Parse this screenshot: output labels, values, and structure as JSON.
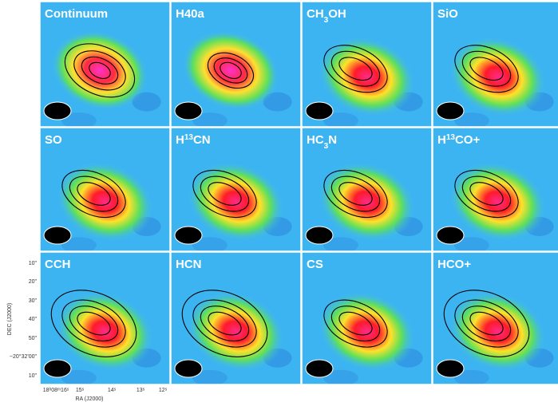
{
  "panels": [
    {
      "label": [
        {
          "text": "Continuum"
        }
      ]
    },
    {
      "label": [
        {
          "text": "H40a"
        }
      ]
    },
    {
      "label": [
        {
          "text": "CH"
        },
        {
          "sub": "3"
        },
        {
          "text": "OH"
        }
      ]
    },
    {
      "label": [
        {
          "text": "SiO"
        }
      ]
    },
    {
      "label": [
        {
          "text": "SO"
        }
      ]
    },
    {
      "label": [
        {
          "text": "H"
        },
        {
          "sup": "13"
        },
        {
          "text": "CN"
        }
      ]
    },
    {
      "label": [
        {
          "text": "HC"
        },
        {
          "sub": "3"
        },
        {
          "text": "N"
        }
      ]
    },
    {
      "label": [
        {
          "text": "H"
        },
        {
          "sup": "13"
        },
        {
          "text": "CO+"
        }
      ]
    },
    {
      "label": [
        {
          "text": "CCH"
        }
      ]
    },
    {
      "label": [
        {
          "text": "HCN"
        }
      ]
    },
    {
      "label": [
        {
          "text": "CS"
        }
      ]
    },
    {
      "label": [
        {
          "text": "HCO+"
        }
      ]
    }
  ],
  "axes": {
    "ylabel": "DEC (J2000)",
    "xlabel": "RA (J2000)",
    "yticks": [
      "10\"",
      "20\"",
      "30\"",
      "40\"",
      "50\"",
      "−20°32'00\"",
      "10\""
    ],
    "xticks": [
      "18ʰ08ᵐ16ˢ",
      "15ˢ",
      "14ˢ",
      "13ˢ",
      "12ˢ"
    ]
  }
}
